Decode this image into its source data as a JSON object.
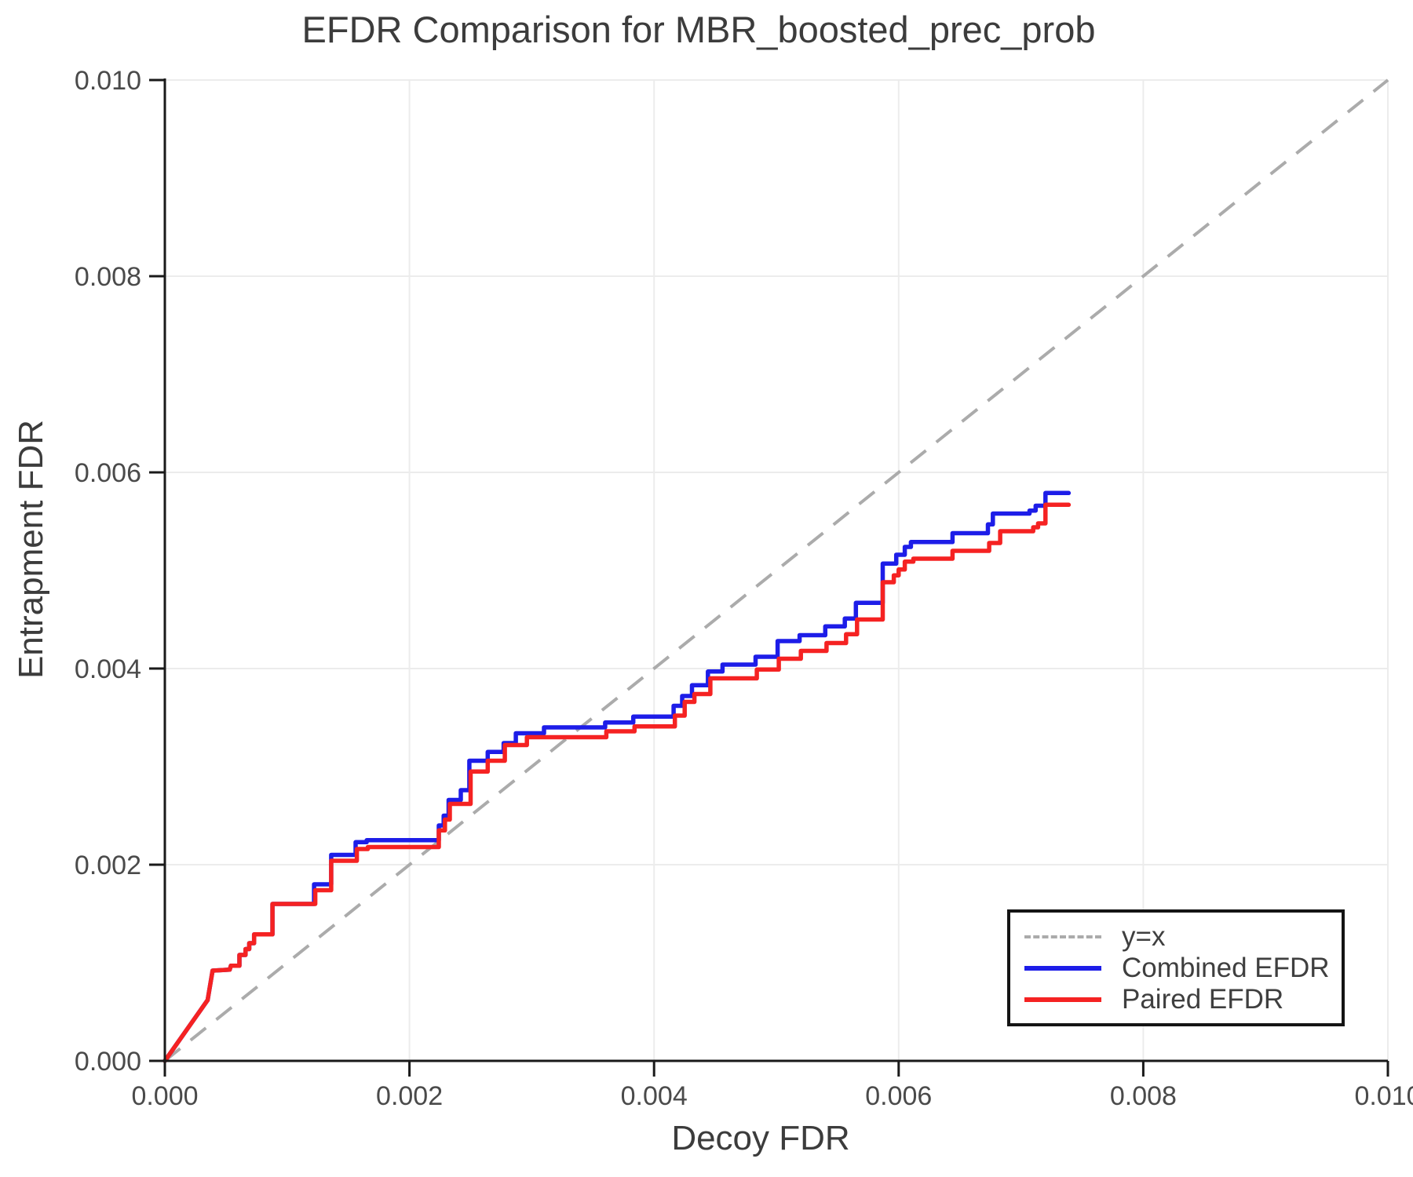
{
  "title": "EFDR Comparison for MBR_boosted_prec_prob",
  "x_axis": {
    "label": "Decoy FDR",
    "tick_values": [
      0.0,
      0.002,
      0.004,
      0.006,
      0.008,
      0.01
    ],
    "tick_labels": [
      "0.000",
      "0.002",
      "0.004",
      "0.006",
      "0.008",
      "0.010"
    ]
  },
  "y_axis": {
    "label": "Entrapment FDR",
    "tick_values": [
      0.0,
      0.002,
      0.004,
      0.006,
      0.008,
      0.01
    ],
    "tick_labels": [
      "0.000",
      "0.002",
      "0.004",
      "0.006",
      "0.008",
      "0.010"
    ]
  },
  "legend": {
    "items": [
      {
        "label": "y=x",
        "color": "#ababab",
        "style": "dashed"
      },
      {
        "label": "Combined EFDR",
        "color": "#1d1de8",
        "style": "solid"
      },
      {
        "label": "Paired EFDR",
        "color": "#f52222",
        "style": "solid"
      }
    ]
  },
  "colors": {
    "background": "#ffffff",
    "grid": "#ececec",
    "spine": "#1a1a1a",
    "tick_text": "#4a4a4a",
    "title_text": "#3c3c3c",
    "diagonal": "#ababab",
    "combined": "#1d1de8",
    "paired": "#f52222"
  },
  "chart_data": {
    "type": "line",
    "title": "EFDR Comparison for MBR_boosted_prec_prob",
    "xlabel": "Decoy FDR",
    "ylabel": "Entrapment FDR",
    "xlim": [
      0.0,
      0.01
    ],
    "ylim": [
      0.0,
      0.01
    ],
    "grid": true,
    "legend_position": "lower right",
    "reference_line": {
      "name": "y=x",
      "from": [
        0.0,
        0.0
      ],
      "to": [
        0.01,
        0.01
      ],
      "style": "dashed",
      "color": "#ababab"
    },
    "series": [
      {
        "name": "Combined EFDR",
        "color": "#1d1de8",
        "style": "solid",
        "points": [
          [
            0.0,
            0.0
          ],
          [
            0.00035,
            0.00062
          ],
          [
            0.00039,
            0.00092
          ],
          [
            0.00053,
            0.00093
          ],
          [
            0.00054,
            0.00097
          ],
          [
            0.00061,
            0.00097
          ],
          [
            0.00061,
            0.00108
          ],
          [
            0.00066,
            0.00108
          ],
          [
            0.00066,
            0.00114
          ],
          [
            0.00069,
            0.00114
          ],
          [
            0.00069,
            0.0012
          ],
          [
            0.00073,
            0.0012
          ],
          [
            0.00073,
            0.00129
          ],
          [
            0.00088,
            0.00129
          ],
          [
            0.00088,
            0.0016
          ],
          [
            0.00122,
            0.0016
          ],
          [
            0.00122,
            0.0018
          ],
          [
            0.00136,
            0.0018
          ],
          [
            0.00136,
            0.0021
          ],
          [
            0.00156,
            0.0021
          ],
          [
            0.00156,
            0.00223
          ],
          [
            0.00165,
            0.00223
          ],
          [
            0.00165,
            0.00225
          ],
          [
            0.00224,
            0.00225
          ],
          [
            0.00224,
            0.0024
          ],
          [
            0.00228,
            0.0024
          ],
          [
            0.00228,
            0.0025
          ],
          [
            0.00232,
            0.0025
          ],
          [
            0.00232,
            0.00266
          ],
          [
            0.00242,
            0.00266
          ],
          [
            0.00242,
            0.00276
          ],
          [
            0.00249,
            0.00276
          ],
          [
            0.00249,
            0.00306
          ],
          [
            0.00264,
            0.00306
          ],
          [
            0.00264,
            0.00315
          ],
          [
            0.00277,
            0.00315
          ],
          [
            0.00277,
            0.00324
          ],
          [
            0.00287,
            0.00324
          ],
          [
            0.00287,
            0.00334
          ],
          [
            0.0031,
            0.00334
          ],
          [
            0.0031,
            0.0034
          ],
          [
            0.0036,
            0.0034
          ],
          [
            0.0036,
            0.00345
          ],
          [
            0.00383,
            0.00345
          ],
          [
            0.00383,
            0.00351
          ],
          [
            0.00416,
            0.00351
          ],
          [
            0.00416,
            0.00362
          ],
          [
            0.00423,
            0.00362
          ],
          [
            0.00423,
            0.00372
          ],
          [
            0.00431,
            0.00372
          ],
          [
            0.00431,
            0.00383
          ],
          [
            0.00444,
            0.00383
          ],
          [
            0.00444,
            0.00397
          ],
          [
            0.00456,
            0.00397
          ],
          [
            0.00456,
            0.00404
          ],
          [
            0.00483,
            0.00404
          ],
          [
            0.00483,
            0.00412
          ],
          [
            0.00501,
            0.00412
          ],
          [
            0.00501,
            0.00428
          ],
          [
            0.00519,
            0.00428
          ],
          [
            0.00519,
            0.00434
          ],
          [
            0.0054,
            0.00434
          ],
          [
            0.0054,
            0.00443
          ],
          [
            0.00556,
            0.00443
          ],
          [
            0.00556,
            0.00451
          ],
          [
            0.00565,
            0.00451
          ],
          [
            0.00565,
            0.00467
          ],
          [
            0.00587,
            0.00467
          ],
          [
            0.00587,
            0.00507
          ],
          [
            0.00598,
            0.00507
          ],
          [
            0.00598,
            0.00516
          ],
          [
            0.00605,
            0.00516
          ],
          [
            0.00605,
            0.00524
          ],
          [
            0.0061,
            0.00524
          ],
          [
            0.0061,
            0.00529
          ],
          [
            0.00644,
            0.00529
          ],
          [
            0.00644,
            0.00538
          ],
          [
            0.00673,
            0.00538
          ],
          [
            0.00673,
            0.00547
          ],
          [
            0.00677,
            0.00547
          ],
          [
            0.00677,
            0.00558
          ],
          [
            0.00707,
            0.00558
          ],
          [
            0.00707,
            0.00561
          ],
          [
            0.00712,
            0.00561
          ],
          [
            0.00712,
            0.00566
          ],
          [
            0.0072,
            0.00566
          ],
          [
            0.0072,
            0.00579
          ],
          [
            0.00739,
            0.00579
          ]
        ]
      },
      {
        "name": "Paired EFDR",
        "color": "#f52222",
        "style": "solid",
        "points": [
          [
            0.0,
            0.0
          ],
          [
            0.00035,
            0.00062
          ],
          [
            0.00039,
            0.00092
          ],
          [
            0.00053,
            0.00093
          ],
          [
            0.00054,
            0.00097
          ],
          [
            0.00061,
            0.00097
          ],
          [
            0.00061,
            0.00108
          ],
          [
            0.00066,
            0.00108
          ],
          [
            0.00066,
            0.00114
          ],
          [
            0.00069,
            0.00114
          ],
          [
            0.00069,
            0.0012
          ],
          [
            0.00073,
            0.0012
          ],
          [
            0.00073,
            0.00129
          ],
          [
            0.00088,
            0.00129
          ],
          [
            0.00088,
            0.0016
          ],
          [
            0.00123,
            0.0016
          ],
          [
            0.00123,
            0.00174
          ],
          [
            0.00136,
            0.00174
          ],
          [
            0.00136,
            0.00204
          ],
          [
            0.00157,
            0.00204
          ],
          [
            0.00157,
            0.00216
          ],
          [
            0.00166,
            0.00216
          ],
          [
            0.00166,
            0.00218
          ],
          [
            0.00224,
            0.00218
          ],
          [
            0.00224,
            0.00235
          ],
          [
            0.00229,
            0.00235
          ],
          [
            0.00229,
            0.00246
          ],
          [
            0.00233,
            0.00246
          ],
          [
            0.00233,
            0.00262
          ],
          [
            0.0025,
            0.00262
          ],
          [
            0.0025,
            0.00295
          ],
          [
            0.00264,
            0.00295
          ],
          [
            0.00264,
            0.00306
          ],
          [
            0.00278,
            0.00306
          ],
          [
            0.00278,
            0.00322
          ],
          [
            0.00296,
            0.00322
          ],
          [
            0.00296,
            0.0033
          ],
          [
            0.00361,
            0.0033
          ],
          [
            0.00361,
            0.00336
          ],
          [
            0.00384,
            0.00336
          ],
          [
            0.00384,
            0.00341
          ],
          [
            0.00417,
            0.00341
          ],
          [
            0.00417,
            0.00352
          ],
          [
            0.00425,
            0.00352
          ],
          [
            0.00425,
            0.00366
          ],
          [
            0.00433,
            0.00366
          ],
          [
            0.00433,
            0.00374
          ],
          [
            0.00446,
            0.00374
          ],
          [
            0.00446,
            0.0039
          ],
          [
            0.00484,
            0.0039
          ],
          [
            0.00484,
            0.00399
          ],
          [
            0.00502,
            0.00399
          ],
          [
            0.00502,
            0.0041
          ],
          [
            0.0052,
            0.0041
          ],
          [
            0.0052,
            0.00418
          ],
          [
            0.00541,
            0.00418
          ],
          [
            0.00541,
            0.00426
          ],
          [
            0.00557,
            0.00426
          ],
          [
            0.00557,
            0.00435
          ],
          [
            0.00566,
            0.00435
          ],
          [
            0.00566,
            0.0045
          ],
          [
            0.00587,
            0.0045
          ],
          [
            0.00587,
            0.00488
          ],
          [
            0.00596,
            0.00488
          ],
          [
            0.00596,
            0.00495
          ],
          [
            0.006,
            0.00495
          ],
          [
            0.006,
            0.00501
          ],
          [
            0.00605,
            0.00501
          ],
          [
            0.00605,
            0.00509
          ],
          [
            0.00612,
            0.00509
          ],
          [
            0.00612,
            0.00512
          ],
          [
            0.00644,
            0.00512
          ],
          [
            0.00644,
            0.0052
          ],
          [
            0.00674,
            0.0052
          ],
          [
            0.00674,
            0.00528
          ],
          [
            0.00683,
            0.00528
          ],
          [
            0.00683,
            0.0054
          ],
          [
            0.0071,
            0.0054
          ],
          [
            0.0071,
            0.00544
          ],
          [
            0.00714,
            0.00544
          ],
          [
            0.00714,
            0.00548
          ],
          [
            0.0072,
            0.00548
          ],
          [
            0.0072,
            0.00567
          ],
          [
            0.00739,
            0.00567
          ]
        ]
      }
    ]
  }
}
